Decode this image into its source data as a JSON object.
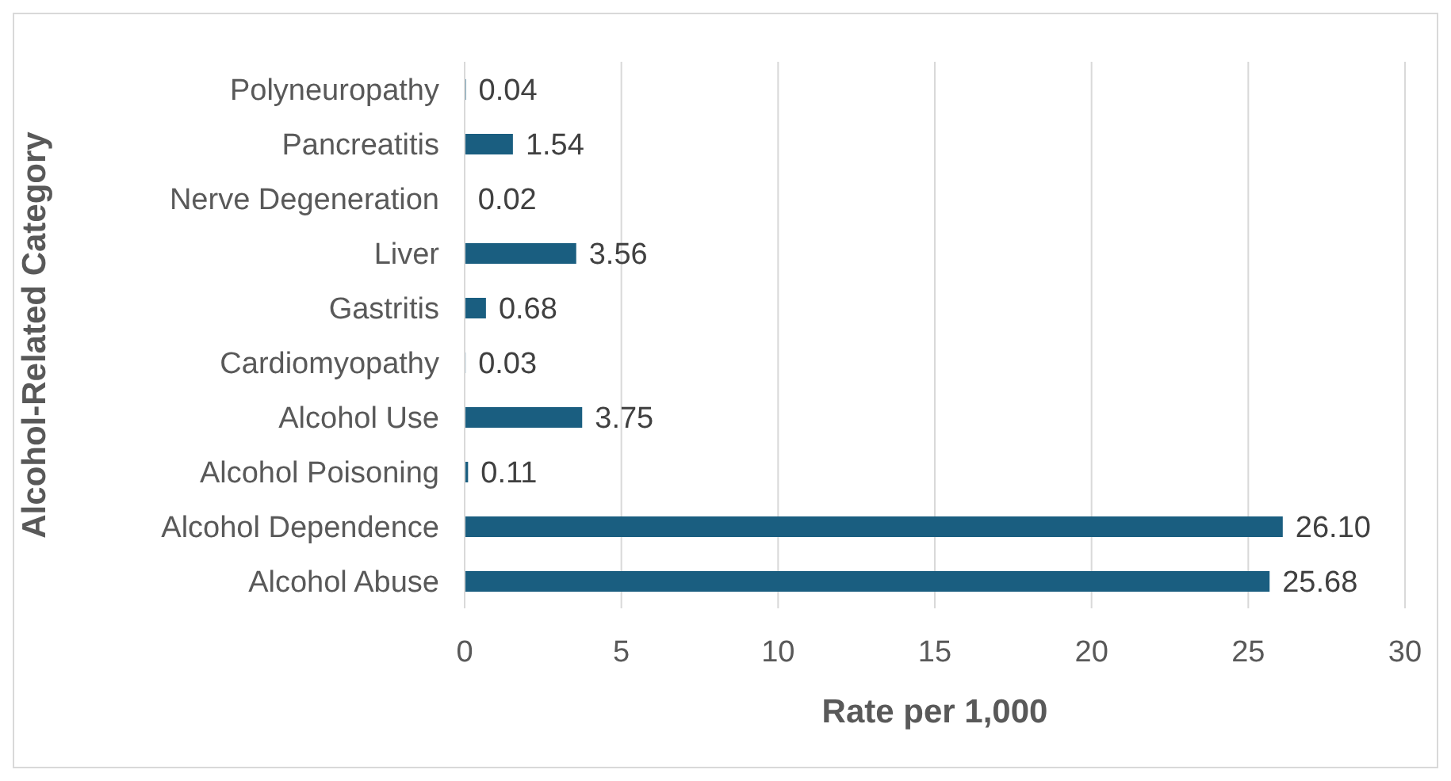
{
  "chart_data": {
    "type": "bar",
    "orientation": "horizontal",
    "xlabel": "Rate per 1,000",
    "ylabel": "Alcohol-Related Category",
    "categories": [
      "Polyneuropathy",
      "Pancreatitis",
      "Nerve Degeneration",
      "Liver",
      "Gastritis",
      "Cardiomyopathy",
      "Alcohol Use",
      "Alcohol Poisoning",
      "Alcohol Dependence",
      "Alcohol Abuse"
    ],
    "values": [
      0.04,
      1.54,
      0.02,
      3.56,
      0.68,
      0.03,
      3.75,
      0.11,
      26.1,
      25.68
    ],
    "value_labels": [
      "0.04",
      "1.54",
      "0.02",
      "3.56",
      "0.68",
      "0.03",
      "3.75",
      "0.11",
      "26.10",
      "25.68"
    ],
    "color": "#1a5e80",
    "xlim": [
      0,
      30
    ],
    "xticks": [
      0,
      5,
      10,
      15,
      20,
      25,
      30
    ],
    "grid": "x",
    "legend": false
  }
}
